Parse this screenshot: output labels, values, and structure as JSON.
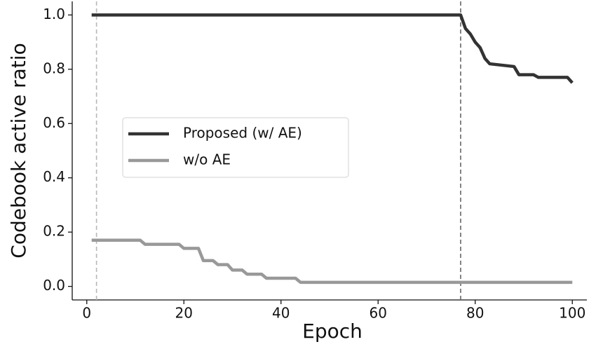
{
  "chart_data": {
    "type": "line",
    "xlabel": "Epoch",
    "ylabel": "Codebook active ratio",
    "xlim": [
      -3,
      103
    ],
    "ylim": [
      -0.05,
      1.05
    ],
    "xticks": [
      0,
      20,
      40,
      60,
      80,
      100
    ],
    "yticks": [
      {
        "value": 0,
        "label": "0.0"
      },
      0.2,
      0.4,
      0.6,
      0.8,
      {
        "value": 1,
        "label": "1.0"
      }
    ],
    "legend_position": "center left",
    "vlines": [
      {
        "x": 2,
        "color": "#b8b8b8"
      },
      {
        "x": 77,
        "color": "#666666"
      }
    ],
    "series": [
      {
        "name": "Proposed (w/ AE)",
        "color": "#333333",
        "x": [
          1,
          77,
          78,
          79,
          80,
          81,
          82,
          83,
          88,
          89,
          92,
          93,
          99,
          100
        ],
        "values": [
          1.0,
          1.0,
          0.95,
          0.93,
          0.9,
          0.88,
          0.84,
          0.82,
          0.81,
          0.78,
          0.78,
          0.77,
          0.77,
          0.75
        ]
      },
      {
        "name": "w/o AE",
        "color": "#999999",
        "x": [
          1,
          11,
          12,
          19,
          20,
          23,
          24,
          26,
          27,
          29,
          30,
          32,
          33,
          36,
          37,
          43,
          44,
          100
        ],
        "values": [
          0.17,
          0.17,
          0.155,
          0.155,
          0.14,
          0.14,
          0.095,
          0.095,
          0.08,
          0.08,
          0.06,
          0.06,
          0.045,
          0.045,
          0.03,
          0.03,
          0.015,
          0.015
        ]
      }
    ]
  }
}
